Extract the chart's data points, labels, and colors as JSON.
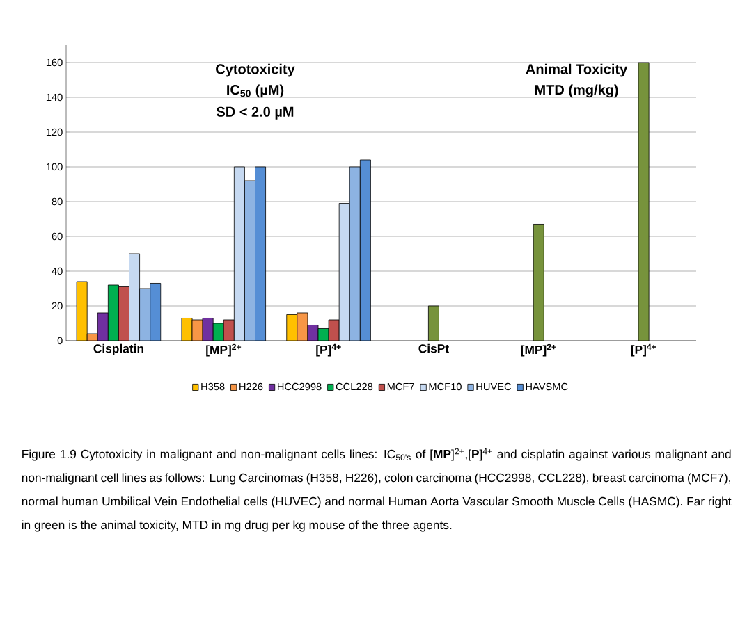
{
  "chart_data": {
    "type": "bar",
    "categories": [
      "Cisplatin",
      "[MP]$^{2+}$",
      "[P]$^{4+}$",
      "CisPt",
      "[MP]$^{2+}$",
      "[P]$^{4+}$"
    ],
    "series": [
      {
        "name": "H358",
        "color": "#ffc000",
        "values": [
          34,
          13,
          15,
          null,
          null,
          null
        ]
      },
      {
        "name": "H226",
        "color": "#f79646",
        "values": [
          4,
          12,
          16,
          null,
          null,
          null
        ]
      },
      {
        "name": "HCC2998",
        "color": "#7030a0",
        "values": [
          16,
          13,
          9,
          null,
          null,
          null
        ]
      },
      {
        "name": "CCL228",
        "color": "#00b050",
        "values": [
          32,
          10,
          7,
          null,
          null,
          null
        ]
      },
      {
        "name": "MCF7",
        "color": "#c0504d",
        "values": [
          31,
          12,
          12,
          null,
          null,
          null
        ]
      },
      {
        "name": "MCF10",
        "color": "#c6d9f1",
        "values": [
          50,
          100,
          79,
          null,
          null,
          null
        ]
      },
      {
        "name": "HUVEC",
        "color": "#8db3e2",
        "values": [
          30,
          92,
          100,
          null,
          null,
          null
        ]
      },
      {
        "name": "HAVSMC",
        "color": "#558ed5",
        "values": [
          33,
          100,
          104,
          null,
          null,
          null
        ]
      },
      {
        "color": "#77933c",
        "values": [
          null,
          null,
          null,
          20,
          67,
          160
        ]
      }
    ],
    "ylim": [
      0,
      170
    ],
    "yticks": [
      0,
      20,
      40,
      60,
      80,
      100,
      120,
      140,
      160
    ],
    "grid": "y",
    "legend": "bottom",
    "annotations": [
      "Cytotoxicity",
      "IC$_{50}$ (µM)",
      "SD < 2.0 µM",
      "Animal Toxicity",
      "MTD (mg/kg)",
      "Figure 1.9 Cytotoxicity in malignant and non-malignant cells lines: IC$_{50's}$ of [**MP**]$^{2+}$,[**P**]$^{4+}$ and cisplatin against various malignant and non-malignant cell lines as follows: Lung Carcinomas (H358, H226), colon carcinoma (HCC2998, CCL228), breast carcinoma (MCF7), normal human Umbilical Vein Endothelial cells (HUVEC) and normal Human Aorta Vascular Smooth Muscle Cells (HASMC).  Far right in green is the animal toxicity, MTD in mg drug per kg mouse of the three agents."
    ]
  }
}
